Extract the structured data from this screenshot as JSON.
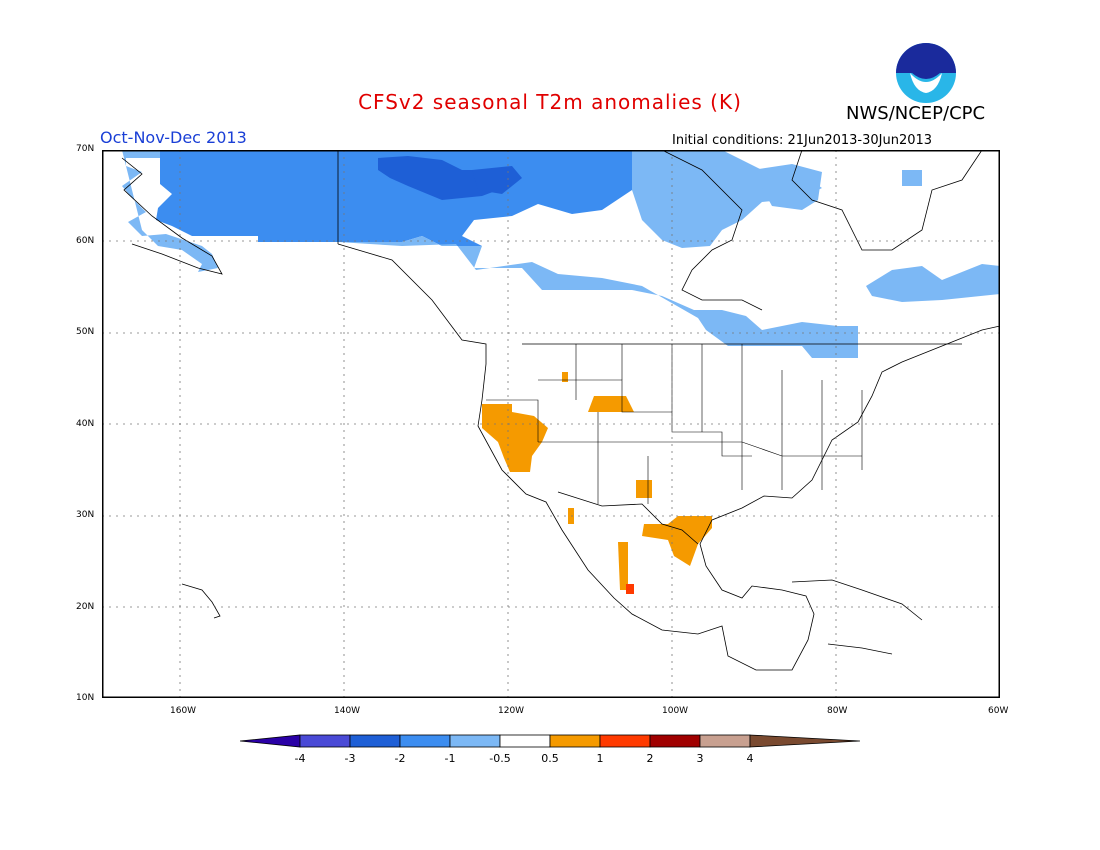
{
  "title": "CFSv2 seasonal T2m anomalies (K)",
  "organization": "NWS/NCEP/CPC",
  "logo_text": "NOAA",
  "season": "Oct-Nov-Dec 2013",
  "initial_conditions": "Initial conditions: 21Jun2013-30Jun2013",
  "map": {
    "lat_labels": [
      "70N",
      "60N",
      "50N",
      "40N",
      "30N",
      "20N",
      "10N"
    ],
    "lon_labels": [
      "160W",
      "140W",
      "120W",
      "100W",
      "80W",
      "60W"
    ],
    "lat_range": [
      10,
      70
    ],
    "lon_range": [
      -170,
      -60
    ],
    "gridlines": "dotted"
  },
  "colorbar": {
    "labels": [
      "-4",
      "-3",
      "-2",
      "-1",
      "-0.5",
      "0.5",
      "1",
      "2",
      "3",
      "4"
    ],
    "colors": [
      "#2a00a6",
      "#4a4ad6",
      "#1e5fd6",
      "#3c8df0",
      "#7cb8f5",
      "#ffffff",
      "#f59a00",
      "#ff3a00",
      "#a00000",
      "#c8a090",
      "#7a4a30"
    ]
  },
  "anomaly_colors": {
    "cold_2": "#1e5fd6",
    "cold_1": "#3c8df0",
    "cold_05": "#7cb8f5",
    "warm_05": "#f59a00",
    "warm_1": "#ff3a00"
  }
}
